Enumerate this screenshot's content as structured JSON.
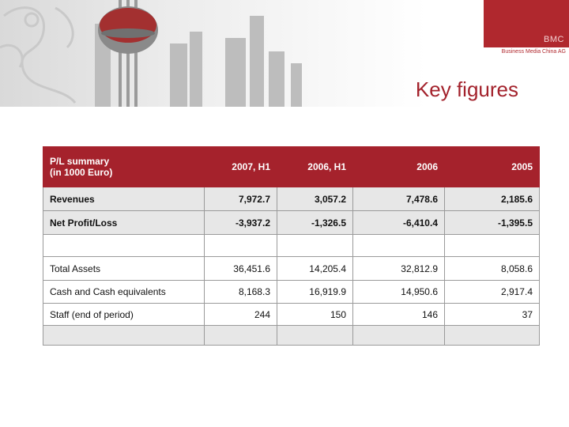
{
  "logo": {
    "mark": "BMC",
    "subtitle": "Business Media China AG"
  },
  "title": "Key figures",
  "table": {
    "header": {
      "label_line1": "P/L summary",
      "label_line2": "(in 1000 Euro)",
      "columns": [
        "2007, H1",
        "2006, H1",
        "2006",
        "2005"
      ]
    },
    "rows": [
      {
        "label": "Revenues",
        "values": [
          "7,972.7",
          "3,057.2",
          "7,478.6",
          "2,185.6"
        ]
      },
      {
        "label": "Net Profit/Loss",
        "values": [
          "-3,937.2",
          "-1,326.5",
          "-6,410.4",
          "-1,395.5"
        ]
      },
      {
        "label": "Total Assets",
        "values": [
          "36,451.6",
          "14,205.4",
          "32,812.9",
          "8,058.6"
        ]
      },
      {
        "label": "Cash and Cash equivalents",
        "values": [
          "8,168.3",
          "16,919.9",
          "14,950.6",
          "2,917.4"
        ]
      },
      {
        "label": "Staff (end of period)",
        "values": [
          "244",
          "150",
          "146",
          "37"
        ]
      }
    ]
  },
  "colors": {
    "brand_red": "#a5222c",
    "band_gray": "#e7e7e7"
  }
}
